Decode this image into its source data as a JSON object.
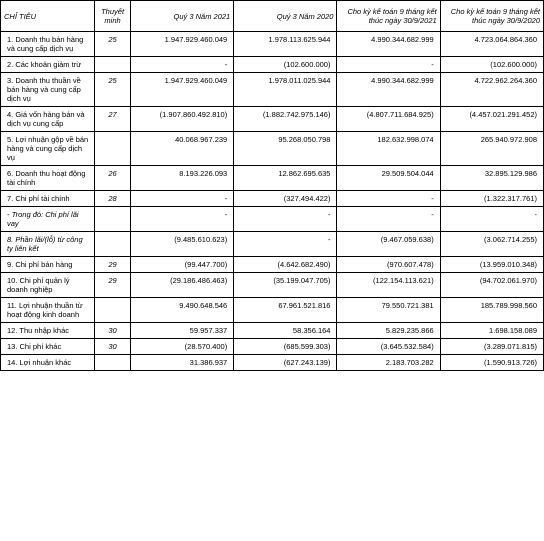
{
  "headers": {
    "chiTieu": "CHỈ TIÊU",
    "thuyetMinh": "Thuyết minh",
    "q3_2021": "Quý 3 Năm 2021",
    "q3_2020": "Quý 3 Năm 2020",
    "ytd_2021": "Cho kỳ kế toán 9 tháng kết thúc ngày 30/9/2021",
    "ytd_2020": "Cho kỳ kế toán 9 tháng kết thúc ngày 30/9/2020"
  },
  "rows": [
    {
      "label": "1. Doanh thu bán hàng và cung cấp dịch vụ",
      "note": "25",
      "c1": "1.947.929.460.049",
      "c2": "1.978.113.625.944",
      "c3": "4.990.344.682.999",
      "c4": "4.723.064.864.360",
      "italic": false
    },
    {
      "label": "2. Các khoản giảm trừ",
      "note": "",
      "c1": "-",
      "c2": "(102.600.000)",
      "c3": "-",
      "c4": "(102.600.000)",
      "italic": false
    },
    {
      "label": "3. Doanh thu thuần về bán hàng và cung cấp dịch vụ",
      "note": "25",
      "c1": "1.947.929.460.049",
      "c2": "1.978.011.025.944",
      "c3": "4.990.344.682.999",
      "c4": "4.722.962.264.360",
      "italic": false
    },
    {
      "label": "4. Giá vốn hàng bán và dịch vụ cung cấp",
      "note": "27",
      "c1": "(1.907.860.492.810)",
      "c2": "(1.882.742.975.146)",
      "c3": "(4.807.711.684.925)",
      "c4": "(4.457.021.291.452)",
      "italic": false
    },
    {
      "label": "5. Lợi nhuận gộp về bán hàng và cung cấp dịch vụ",
      "note": "",
      "c1": "40.068.967.239",
      "c2": "95.268.050.798",
      "c3": "182.632.998.074",
      "c4": "265.940.972.908",
      "italic": false
    },
    {
      "label": "6. Doanh thu hoạt động tài chính",
      "note": "26",
      "c1": "8.193.226.093",
      "c2": "12.862.695.635",
      "c3": "29.509.504.044",
      "c4": "32.895.129.986",
      "italic": false
    },
    {
      "label": "7. Chi phí tài chính",
      "note": "28",
      "c1": "-",
      "c2": "(327.494.422)",
      "c3": "-",
      "c4": "(1.322.317.761)",
      "italic": false
    },
    {
      "label": "- Trong đó: Chi phí lãi vay",
      "note": "",
      "c1": "-",
      "c2": "-",
      "c3": "-",
      "c4": "-",
      "italic": true,
      "sub": true
    },
    {
      "label": "8. Phần lãi/(lỗ) từ công ty liên kết",
      "note": "",
      "c1": "(9.485.610.623)",
      "c2": "-",
      "c3": "(9.467.059.638)",
      "c4": "(3.062.714.255)",
      "italic": true
    },
    {
      "label": "9. Chi phí bán hàng",
      "note": "29",
      "c1": "(99.447.700)",
      "c2": "(4.642.682.490)",
      "c3": "(970.607.478)",
      "c4": "(13.959.010.348)",
      "italic": false
    },
    {
      "label": "10. Chi phí quản lý doanh nghiệp",
      "note": "29",
      "c1": "(29.186.486.463)",
      "c2": "(35.199.047.705)",
      "c3": "(122.154.113.621)",
      "c4": "(94.702.061.970)",
      "italic": false
    },
    {
      "label": "11. Lợi nhuận thuần từ hoạt động kinh doanh",
      "note": "",
      "c1": "9.490.648.546",
      "c2": "67.961.521.816",
      "c3": "79.550.721.381",
      "c4": "185.789.998.560",
      "italic": false
    },
    {
      "label": "12. Thu nhập khác",
      "note": "30",
      "c1": "59.957.337",
      "c2": "58.356.164",
      "c3": "5.829.235.866",
      "c4": "1.698.158.089",
      "italic": false
    },
    {
      "label": "13. Chi phí khác",
      "note": "30",
      "c1": "(28.570.400)",
      "c2": "(685.599.303)",
      "c3": "(3.645.532.584)",
      "c4": "(3.289.071.815)",
      "italic": false
    },
    {
      "label": "14. Lợi nhuận khác",
      "note": "",
      "c1": "31.386.937",
      "c2": "(627.243.139)",
      "c3": "2.183.703.282",
      "c4": "(1.590.913.726)",
      "italic": false
    }
  ]
}
